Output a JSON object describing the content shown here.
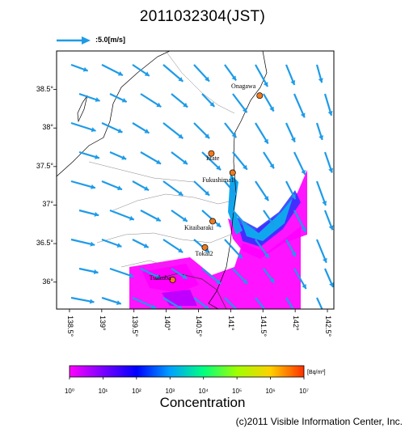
{
  "title": "2011032304(JST)",
  "scale": {
    "label": ":5.0[m/s]",
    "color": "#1e9be8"
  },
  "map": {
    "lon_range": [
      138.3,
      142.6
    ],
    "lat_range": [
      35.65,
      39.0
    ],
    "y_ticks": [
      {
        "label": "38.5°",
        "lat": 38.5
      },
      {
        "label": "38°",
        "lat": 38.0
      },
      {
        "label": "37.5°",
        "lat": 37.5
      },
      {
        "label": "37°",
        "lat": 37.0
      },
      {
        "label": "36.5°",
        "lat": 36.5
      },
      {
        "label": "36°",
        "lat": 36.0
      }
    ],
    "x_ticks": [
      {
        "label": "138.5°",
        "lon": 138.5
      },
      {
        "label": "139°",
        "lon": 139.0
      },
      {
        "label": "139.5°",
        "lon": 139.5
      },
      {
        "label": "140°",
        "lon": 140.0
      },
      {
        "label": "140.5°",
        "lon": 140.5
      },
      {
        "label": "141°",
        "lon": 141.0
      },
      {
        "label": "141.5°",
        "lon": 141.5
      },
      {
        "label": "142°",
        "lon": 142.0
      },
      {
        "label": "142.5°",
        "lon": 142.5
      }
    ],
    "sites": [
      {
        "name": "Onagawa",
        "lon": 141.45,
        "lat": 38.42
      },
      {
        "name": "Iitate",
        "lon": 140.7,
        "lat": 37.67
      },
      {
        "name": "Fukushima1",
        "lon": 141.03,
        "lat": 37.42
      },
      {
        "name": "Kitaibaraki",
        "lon": 140.72,
        "lat": 36.79
      },
      {
        "name": "Tokai2",
        "lon": 140.6,
        "lat": 36.45
      },
      {
        "name": "Tsukuba",
        "lon": 140.1,
        "lat": 36.03
      }
    ],
    "site_color": "#f07a1e"
  },
  "colorbar": {
    "unit": "[Bq/m³]",
    "title": "Concentration",
    "tick_labels": [
      "10⁰",
      "10¹",
      "10²",
      "10³",
      "10⁴",
      "10⁵",
      "10⁶",
      "10⁷"
    ],
    "colors": [
      "#ff00ff",
      "#7a00ff",
      "#0000ff",
      "#00a0ff",
      "#00ff80",
      "#a0ff00",
      "#ffd000",
      "#ff3000"
    ]
  },
  "copyright": "(c)2011 Visible Information Center, Inc."
}
